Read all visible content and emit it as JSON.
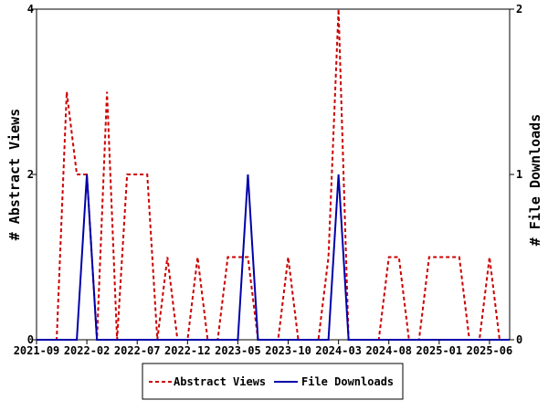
{
  "chart_data": {
    "type": "line",
    "xlabel": "",
    "ylabel_left": "# Abstract Views",
    "ylabel_right": "# File Downloads",
    "ylim_left": [
      0,
      4
    ],
    "ylim_right": [
      0,
      2
    ],
    "yticks_left": [
      "0",
      "2",
      "4"
    ],
    "yticks_right": [
      "0",
      "1",
      "2"
    ],
    "x_ticks": [
      "2021-09",
      "2022-02",
      "2022-07",
      "2022-12",
      "2023-05",
      "2023-10",
      "2024-03",
      "2024-08",
      "2025-01",
      "2025-06"
    ],
    "x": [
      "2021-09",
      "2021-10",
      "2021-11",
      "2021-12",
      "2022-01",
      "2022-02",
      "2022-03",
      "2022-04",
      "2022-05",
      "2022-06",
      "2022-07",
      "2022-08",
      "2022-09",
      "2022-10",
      "2022-11",
      "2022-12",
      "2023-01",
      "2023-02",
      "2023-03",
      "2023-04",
      "2023-05",
      "2023-06",
      "2023-07",
      "2023-08",
      "2023-09",
      "2023-10",
      "2023-11",
      "2023-12",
      "2024-01",
      "2024-02",
      "2024-03",
      "2024-04",
      "2024-05",
      "2024-06",
      "2024-07",
      "2024-08",
      "2024-09",
      "2024-10",
      "2024-11",
      "2024-12",
      "2025-01",
      "2025-02",
      "2025-03",
      "2025-04",
      "2025-05",
      "2025-06",
      "2025-07",
      "2025-08"
    ],
    "grid": false,
    "legend_position": "bottom",
    "series": [
      {
        "name": "Abstract Views",
        "axis": "left",
        "color": "#cc0000",
        "dash": true,
        "values": [
          0,
          0,
          0,
          3,
          2,
          2,
          0,
          3,
          0,
          2,
          2,
          2,
          0,
          1,
          0,
          0,
          1,
          0,
          0,
          1,
          1,
          1,
          0,
          0,
          0,
          1,
          0,
          0,
          0,
          1,
          4,
          0,
          0,
          0,
          0,
          1,
          1,
          0,
          0,
          1,
          1,
          1,
          1,
          0,
          0,
          1,
          0,
          0
        ]
      },
      {
        "name": "File Downloads",
        "axis": "right",
        "color": "#0000aa",
        "dash": false,
        "values": [
          0,
          0,
          0,
          0,
          0,
          1,
          0,
          0,
          0,
          0,
          0,
          0,
          0,
          0,
          0,
          0,
          0,
          0,
          0,
          0,
          0,
          1,
          0,
          0,
          0,
          0,
          0,
          0,
          0,
          0,
          1,
          0,
          0,
          0,
          0,
          0,
          0,
          0,
          0,
          0,
          0,
          0,
          0,
          0,
          0,
          0,
          0,
          0
        ]
      }
    ]
  }
}
